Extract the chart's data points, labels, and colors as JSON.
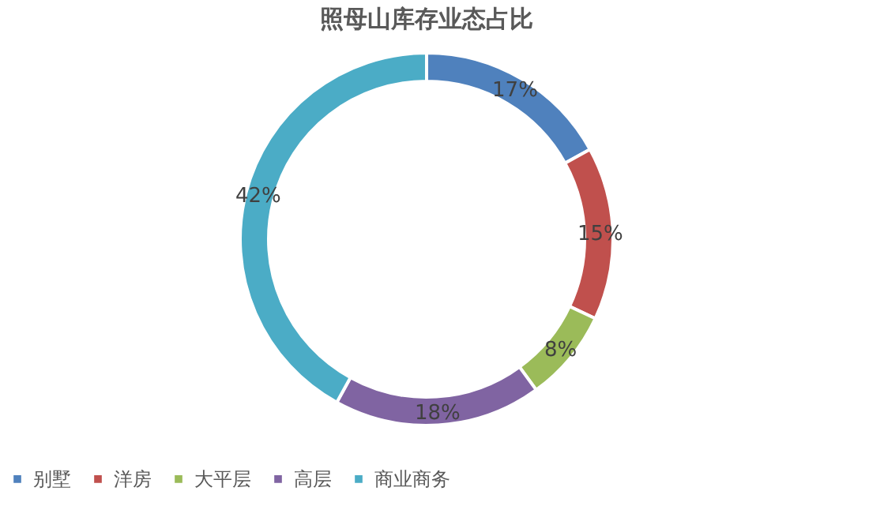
{
  "chart_data": {
    "type": "donut",
    "title": "照母山库存业态占比",
    "categories": [
      "别墅",
      "洋房",
      "大平层",
      "高层",
      "商业商务"
    ],
    "values": [
      17,
      15,
      8,
      18,
      42
    ],
    "colors": [
      "#4f81bd",
      "#c0504d",
      "#9bbb59",
      "#8064a2",
      "#4bacc6"
    ],
    "value_labels": [
      "17%",
      "15%",
      "8%",
      "18%",
      "42%"
    ],
    "legend": "bottom"
  }
}
